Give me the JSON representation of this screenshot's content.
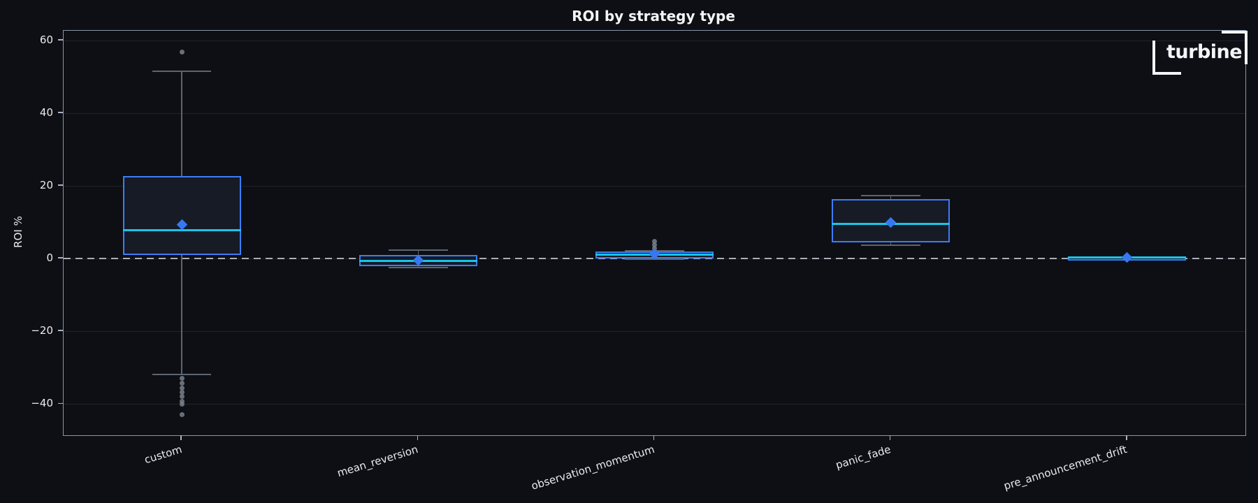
{
  "page": {
    "background": "#0d0f14"
  },
  "logo": {
    "text": "turbine"
  },
  "chart_data": {
    "type": "box",
    "title": "ROI by strategy type",
    "ylabel": "ROI %",
    "xlabel": "",
    "categories": [
      "custom",
      "mean_reversion",
      "observation_momentum",
      "panic_fade",
      "pre_announcement_drift"
    ],
    "yticks": [
      60,
      40,
      20,
      0,
      -20,
      -40
    ],
    "ylim": [
      -48.6,
      62.7
    ],
    "grid": true,
    "legend": "none",
    "zero_line": {
      "value": 0,
      "style": "dashed"
    },
    "series": [
      {
        "category": "custom",
        "whisker_low": -31.9,
        "q1": 1.0,
        "median": 7.9,
        "q3": 22.7,
        "whisker_high": 51.5,
        "mean": 9.4,
        "outliers": [
          56.9,
          -32.9,
          -34.3,
          -35.6,
          -36.8,
          -38.0,
          -39.2,
          -40.1,
          -42.9
        ]
      },
      {
        "category": "mean_reversion",
        "whisker_low": -2.4,
        "q1": -2.0,
        "median": -0.55,
        "q3": 1.0,
        "whisker_high": 2.3,
        "mean": -0.4,
        "outliers": []
      },
      {
        "category": "observation_momentum",
        "whisker_low": -0.2,
        "q1": 0.1,
        "median": 1.0,
        "q3": 1.9,
        "whisker_high": 2.2,
        "mean": 1.35,
        "outliers": [
          2.9,
          3.8,
          4.8
        ]
      },
      {
        "category": "panic_fade",
        "whisker_low": 3.7,
        "q1": 4.4,
        "median": 9.6,
        "q3": 16.3,
        "whisker_high": 17.3,
        "mean": 10.0,
        "outliers": []
      },
      {
        "category": "pre_announcement_drift",
        "whisker_low": 0.15,
        "q1": 0.2,
        "median": 0.3,
        "q3": 0.45,
        "whisker_high": 0.5,
        "mean": 0.4,
        "outliers": []
      }
    ],
    "colors": {
      "background": "#0d0f14",
      "box_fill": "#161b26",
      "box_edge": "#3e7cf7",
      "median": "#18c5e8",
      "mean_marker": "#3678f2",
      "whisker": "#5d6570",
      "outlier": "#79808d",
      "zero_line": "#a9aeb8",
      "grid": "#20232b",
      "axis_border": "#8b94a6",
      "tick": "#aab3c2",
      "text": "#e9ebee",
      "title": "#f2f4f6"
    }
  }
}
